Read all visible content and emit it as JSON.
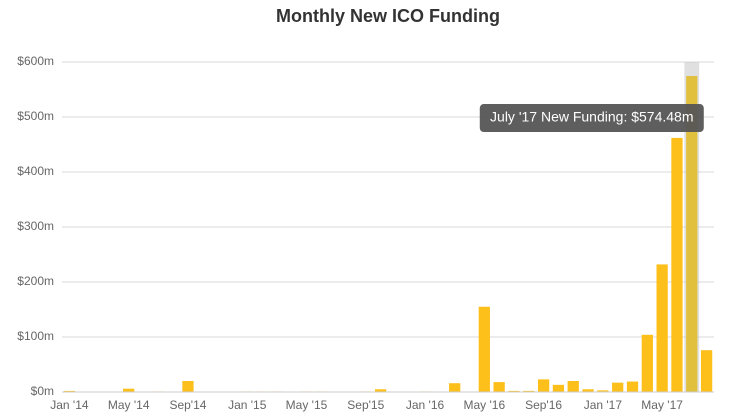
{
  "chart_data": {
    "type": "bar",
    "title": "Monthly New ICO Funding",
    "categories": [
      "Jan '14",
      null,
      null,
      null,
      "May '14",
      null,
      null,
      null,
      "Sep'14",
      null,
      null,
      null,
      "Jan '15",
      null,
      null,
      null,
      "May '15",
      null,
      null,
      null,
      "Sep'15",
      null,
      null,
      null,
      "Jan '16",
      null,
      null,
      null,
      "May '16",
      null,
      null,
      null,
      "Sep'16",
      null,
      null,
      null,
      "Jan '17",
      null,
      null,
      null,
      "May '17",
      null,
      null,
      null
    ],
    "values": [
      2,
      0.5,
      0.3,
      0.5,
      6,
      0.5,
      1,
      0.5,
      20,
      0.5,
      0.3,
      0.3,
      1,
      1,
      1,
      0.3,
      1,
      1,
      0.3,
      0.3,
      1,
      5,
      0.5,
      0.3,
      1,
      0.5,
      16,
      0.5,
      155,
      18,
      2,
      2,
      23,
      13,
      20,
      5,
      3,
      17,
      19,
      104,
      232,
      462,
      574.48,
      76
    ],
    "color": "#fdc01b",
    "ylim": [
      0,
      600
    ],
    "yticks": [
      {
        "value": 0,
        "label": "$0m"
      },
      {
        "value": 100,
        "label": "$100m"
      },
      {
        "value": 200,
        "label": "$200m"
      },
      {
        "value": 300,
        "label": "$300m"
      },
      {
        "value": 400,
        "label": "$400m"
      },
      {
        "value": 500,
        "label": "$500m"
      },
      {
        "value": 600,
        "label": "$600m"
      }
    ],
    "grid": true,
    "annotation": "July '17 New Funding: $574.48m"
  }
}
